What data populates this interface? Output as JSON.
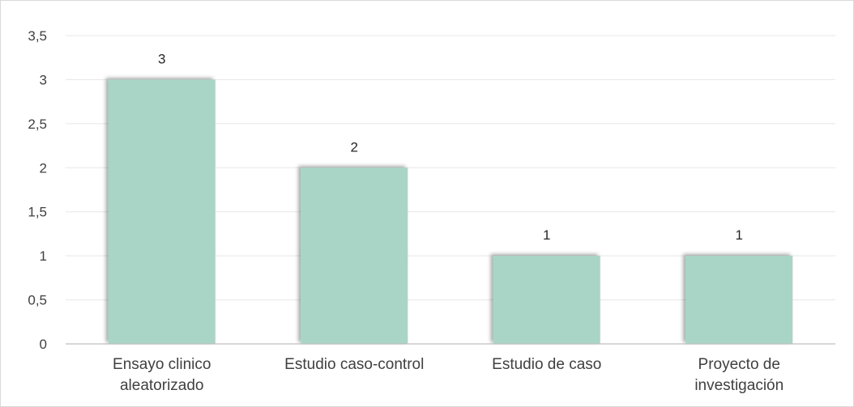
{
  "chart_data": {
    "type": "bar",
    "categories": [
      [
        "Ensayo clinico",
        "aleatorizado"
      ],
      [
        "Estudio caso-control"
      ],
      [
        "Estudio de caso"
      ],
      [
        "Proyecto de",
        "investigación"
      ]
    ],
    "values": [
      3,
      2,
      1,
      1
    ],
    "data_labels": [
      "3",
      "2",
      "1",
      "1"
    ],
    "ylim": [
      0,
      3.5
    ],
    "yticks": [
      {
        "value": 0,
        "label": "0"
      },
      {
        "value": 0.5,
        "label": "0,5"
      },
      {
        "value": 1,
        "label": "1"
      },
      {
        "value": 1.5,
        "label": "1,5"
      },
      {
        "value": 2,
        "label": "2"
      },
      {
        "value": 2.5,
        "label": "2,5"
      },
      {
        "value": 3,
        "label": "3"
      },
      {
        "value": 3.5,
        "label": "3,5"
      }
    ],
    "grid": true,
    "legend": "none",
    "bar_color": "#a8d5c6",
    "grid_color": "#e7e7e7",
    "axis_color": "#bfbfbf"
  }
}
